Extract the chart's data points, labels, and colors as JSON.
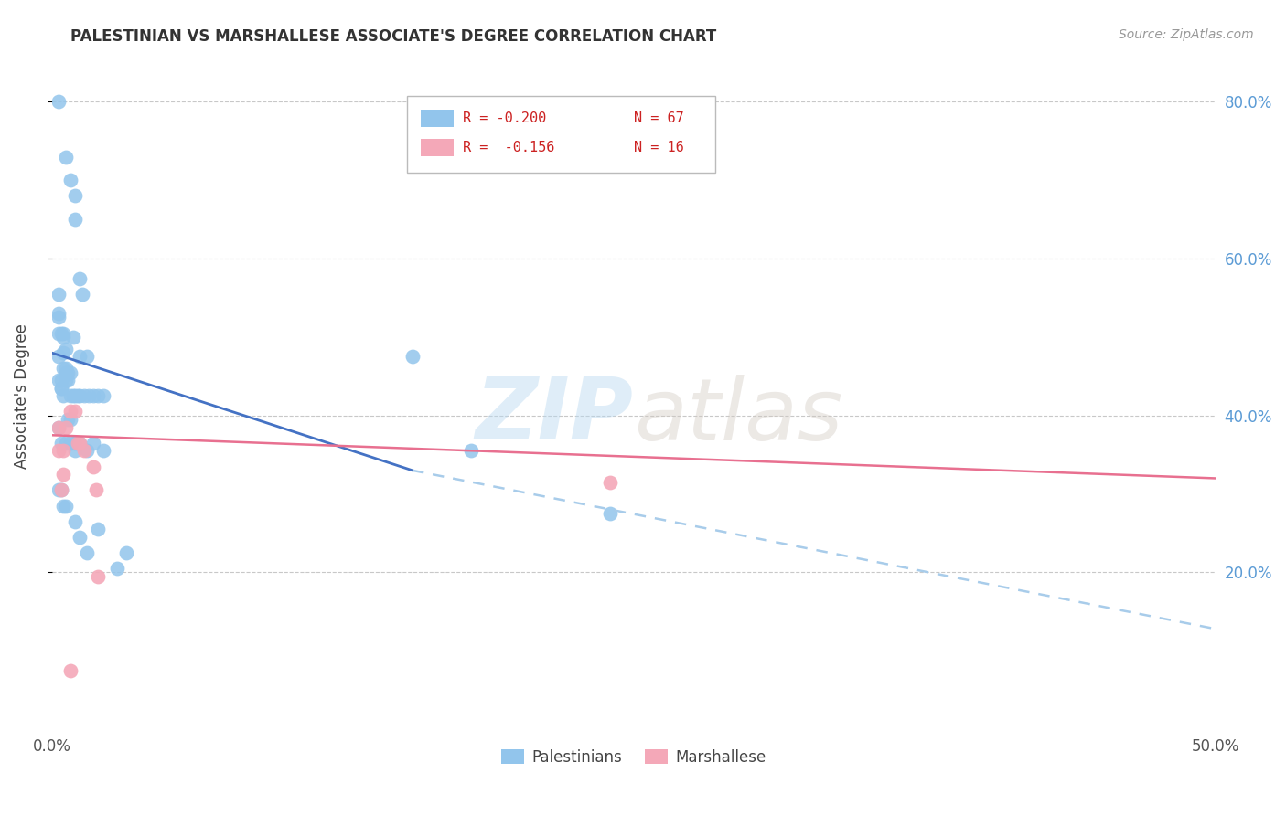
{
  "title": "PALESTINIAN VS MARSHALLESE ASSOCIATE'S DEGREE CORRELATION CHART",
  "source": "Source: ZipAtlas.com",
  "ylabel": "Associate's Degree",
  "xmin": 0.0,
  "xmax": 0.5,
  "ymin": 0.0,
  "ymax": 0.85,
  "yticks": [
    0.2,
    0.4,
    0.6,
    0.8
  ],
  "ytick_labels": [
    "20.0%",
    "40.0%",
    "60.0%",
    "80.0%"
  ],
  "xticks": [
    0.0,
    0.1,
    0.2,
    0.3,
    0.4,
    0.5
  ],
  "xtick_labels": [
    "0.0%",
    "",
    "",
    "",
    "",
    "50.0%"
  ],
  "legend_R1": "R = -0.200",
  "legend_N1": "N = 67",
  "legend_R2": "R =  -0.156",
  "legend_N2": "N = 16",
  "blue_color": "#92C5EC",
  "pink_color": "#F4A8B8",
  "blue_line_color": "#4472C4",
  "pink_line_color": "#E87090",
  "dashed_line_color": "#A8CCEA",
  "watermark_zip": "ZIP",
  "watermark_atlas": "atlas",
  "palestinians_x": [
    0.003,
    0.006,
    0.008,
    0.01,
    0.01,
    0.012,
    0.013,
    0.003,
    0.003,
    0.003,
    0.004,
    0.005,
    0.005,
    0.006,
    0.006,
    0.007,
    0.008,
    0.009,
    0.003,
    0.003,
    0.004,
    0.004,
    0.005,
    0.005,
    0.006,
    0.007,
    0.008,
    0.009,
    0.01,
    0.011,
    0.012,
    0.014,
    0.016,
    0.018,
    0.02,
    0.022,
    0.003,
    0.004,
    0.005,
    0.006,
    0.007,
    0.008,
    0.01,
    0.012,
    0.015,
    0.003,
    0.004,
    0.006,
    0.008,
    0.01,
    0.012,
    0.015,
    0.018,
    0.022,
    0.003,
    0.004,
    0.005,
    0.006,
    0.01,
    0.012,
    0.015,
    0.18,
    0.24,
    0.155,
    0.028,
    0.032,
    0.02
  ],
  "palestinians_y": [
    0.8,
    0.73,
    0.7,
    0.68,
    0.65,
    0.575,
    0.555,
    0.555,
    0.525,
    0.53,
    0.505,
    0.505,
    0.5,
    0.485,
    0.455,
    0.455,
    0.455,
    0.5,
    0.505,
    0.475,
    0.435,
    0.445,
    0.46,
    0.48,
    0.46,
    0.445,
    0.425,
    0.425,
    0.425,
    0.425,
    0.425,
    0.425,
    0.425,
    0.425,
    0.425,
    0.425,
    0.445,
    0.435,
    0.425,
    0.445,
    0.395,
    0.395,
    0.355,
    0.475,
    0.475,
    0.385,
    0.365,
    0.365,
    0.365,
    0.365,
    0.365,
    0.355,
    0.365,
    0.355,
    0.305,
    0.305,
    0.285,
    0.285,
    0.265,
    0.245,
    0.225,
    0.355,
    0.275,
    0.475,
    0.205,
    0.225,
    0.255
  ],
  "marshallese_x": [
    0.003,
    0.003,
    0.004,
    0.005,
    0.005,
    0.006,
    0.008,
    0.01,
    0.011,
    0.012,
    0.014,
    0.018,
    0.019,
    0.02,
    0.24,
    0.008
  ],
  "marshallese_y": [
    0.385,
    0.355,
    0.305,
    0.355,
    0.325,
    0.385,
    0.405,
    0.405,
    0.365,
    0.365,
    0.355,
    0.335,
    0.305,
    0.195,
    0.315,
    0.075
  ],
  "blue_trend_x": [
    0.0,
    0.155
  ],
  "blue_trend_y": [
    0.48,
    0.33
  ],
  "pink_trend_x": [
    0.0,
    0.5
  ],
  "pink_trend_y": [
    0.375,
    0.32
  ],
  "dashed_trend_x": [
    0.155,
    0.5
  ],
  "dashed_trend_y": [
    0.33,
    0.128
  ]
}
